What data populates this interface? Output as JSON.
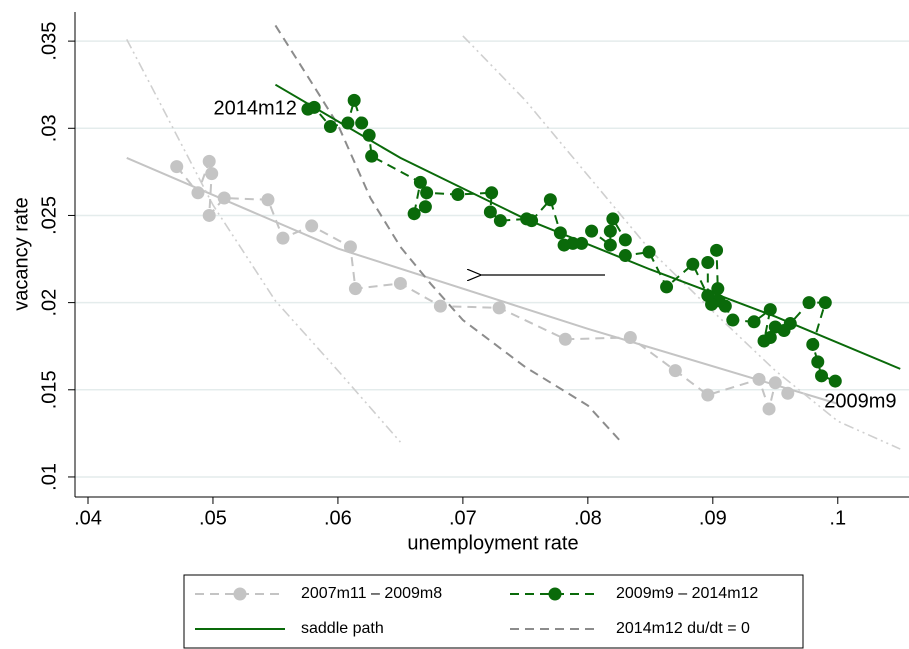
{
  "chart_data": {
    "type": "line",
    "x_label": "unemployment rate",
    "y_label": "vacancy rate",
    "xlim": [
      0.03896,
      0.1057
    ],
    "ylim": [
      0.00885,
      0.03667
    ],
    "xticks": [
      {
        "value": 0.04,
        "label": ".04"
      },
      {
        "value": 0.05,
        "label": ".05"
      },
      {
        "value": 0.06,
        "label": ".06"
      },
      {
        "value": 0.07,
        "label": ".07"
      },
      {
        "value": 0.08,
        "label": ".08"
      },
      {
        "value": 0.09,
        "label": ".09"
      },
      {
        "value": 0.1,
        "label": ".1"
      }
    ],
    "yticks": [
      {
        "value": 0.01,
        "label": ".01"
      },
      {
        "value": 0.015,
        "label": ".015"
      },
      {
        "value": 0.02,
        "label": ".02"
      },
      {
        "value": 0.025,
        "label": ".025"
      },
      {
        "value": 0.03,
        "label": ".03"
      },
      {
        "value": 0.035,
        "label": ".035"
      }
    ],
    "grid": true,
    "series": [
      {
        "name": "2007m11 – 2009m8",
        "color": "#c4c4c4",
        "dash": "dashed",
        "marker": true,
        "x": [
          0.0471,
          0.0488,
          0.0497,
          0.0499,
          0.0497,
          0.0509,
          0.0544,
          0.0556,
          0.0579,
          0.061,
          0.0614,
          0.065,
          0.0682,
          0.0729,
          0.0782,
          0.0834,
          0.087,
          0.0896,
          0.0937,
          0.0945,
          0.095,
          0.096
        ],
        "values": [
          0.0278,
          0.0263,
          0.0281,
          0.0274,
          0.025,
          0.026,
          0.0259,
          0.0237,
          0.0244,
          0.0232,
          0.0208,
          0.0211,
          0.0198,
          0.0197,
          0.0179,
          0.018,
          0.0161,
          0.0147,
          0.0156,
          0.0139,
          0.0154,
          0.0148
        ]
      },
      {
        "name": "2009m9 – 2014m12",
        "color": "#0a6a0a",
        "dash": "dashed",
        "marker": true,
        "x": [
          0.0998,
          0.0987,
          0.0984,
          0.098,
          0.099,
          0.0977,
          0.0962,
          0.0957,
          0.095,
          0.0946,
          0.0941,
          0.0946,
          0.0933,
          0.0916,
          0.091,
          0.0905,
          0.0899,
          0.0904,
          0.0903,
          0.0896,
          0.0896,
          0.0884,
          0.0863,
          0.0849,
          0.083,
          0.083,
          0.082,
          0.0818,
          0.0818,
          0.0803,
          0.0795,
          0.0788,
          0.0781,
          0.0778,
          0.077,
          0.0755,
          0.0751,
          0.073,
          0.0722,
          0.0723,
          0.0696,
          0.0671,
          0.067,
          0.0661,
          0.0666,
          0.0627,
          0.0625,
          0.0619,
          0.0613,
          0.0608,
          0.0594,
          0.0581,
          0.0576
        ],
        "values": [
          0.0155,
          0.0158,
          0.0166,
          0.0176,
          0.02,
          0.02,
          0.0188,
          0.0184,
          0.0186,
          0.018,
          0.0178,
          0.0196,
          0.0189,
          0.019,
          0.0198,
          0.0201,
          0.0199,
          0.0208,
          0.023,
          0.0223,
          0.0204,
          0.0222,
          0.0209,
          0.0229,
          0.0227,
          0.0236,
          0.0248,
          0.0241,
          0.0233,
          0.0241,
          0.0234,
          0.0234,
          0.0233,
          0.024,
          0.0259,
          0.0247,
          0.0248,
          0.0247,
          0.0252,
          0.0263,
          0.0262,
          0.0263,
          0.0255,
          0.0251,
          0.0269,
          0.0284,
          0.0296,
          0.0303,
          0.0316,
          0.0303,
          0.0301,
          0.0312,
          0.0311
        ]
      },
      {
        "name": "saddle path",
        "color": "#0a6a0a",
        "dash": "solid",
        "marker": false,
        "x": [
          0.055,
          0.065,
          0.075,
          0.085,
          0.095,
          0.105
        ],
        "values": [
          0.0325,
          0.0283,
          0.0248,
          0.0219,
          0.0192,
          0.0162
        ]
      },
      {
        "name": "2014m12 du/dt = 0",
        "color": "#8c8c8c",
        "dash": "dashed",
        "marker": false,
        "x": [
          0.055,
          0.058,
          0.06,
          0.0626,
          0.065,
          0.0674,
          0.07,
          0.075,
          0.08,
          0.0828
        ],
        "values": [
          0.0359,
          0.0325,
          0.0302,
          0.026,
          0.0232,
          0.0211,
          0.019,
          0.0163,
          0.0141,
          0.0119
        ]
      },
      {
        "color": "#c4c4c4",
        "dash": "solid",
        "marker": false,
        "x": [
          0.0431,
          0.06,
          0.08,
          0.1
        ],
        "values": [
          0.0283,
          0.0231,
          0.0185,
          0.0142
        ]
      },
      {
        "color": "#cfcfcf",
        "dash": "dashdot",
        "marker": false,
        "x": [
          0.0431,
          0.045,
          0.05,
          0.055,
          0.06,
          0.065
        ],
        "values": [
          0.0351,
          0.0325,
          0.0256,
          0.0201,
          0.0161,
          0.012
        ]
      },
      {
        "color": "#cfcfcf",
        "dash": "dashdot",
        "marker": false,
        "x": [
          0.07,
          0.075,
          0.08,
          0.085,
          0.09,
          0.095,
          0.1,
          0.105
        ],
        "values": [
          0.0353,
          0.0316,
          0.0273,
          0.023,
          0.0195,
          0.0161,
          0.0132,
          0.0116
        ]
      }
    ],
    "annotations": [
      "2014m12",
      "2009m9"
    ]
  }
}
